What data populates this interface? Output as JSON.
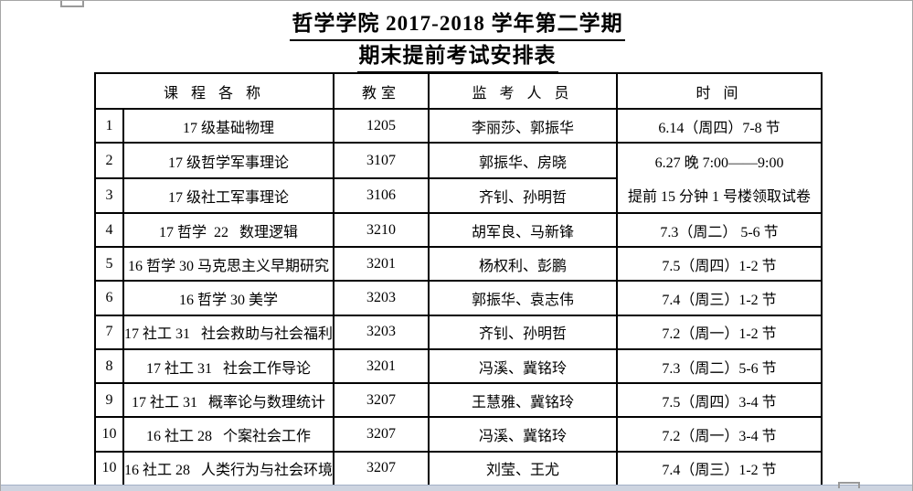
{
  "titles": {
    "line1": "哲学学院 2017-2018 学年第二学期",
    "line2": "期末提前考试安排表"
  },
  "colors": {
    "table_border": "#000000",
    "page_frame": "#a6a6a6",
    "bottom_bar": "#cdd4e0",
    "text": "#000000"
  },
  "table": {
    "headers": {
      "course": "课 程 各 称",
      "room": "教室",
      "invigilators": "监 考 人 员",
      "time": "时 间"
    },
    "merged_time": {
      "line1": "6.27 晚 7:00——9:00",
      "line2": "提前 15 分钟 1 号楼领取试卷"
    },
    "rows": [
      {
        "no": "1",
        "course": "17 级基础物理",
        "room": "1205",
        "invigilators": "李丽莎、郭振华",
        "time": "6.14（周四）7-8 节"
      },
      {
        "no": "2",
        "course": "17 级哲学军事理论",
        "room": "3107",
        "invigilators": "郭振华、房晓",
        "time": ""
      },
      {
        "no": "3",
        "course": "17 级社工军事理论",
        "room": "3106",
        "invigilators": "齐钊、孙明哲",
        "time": ""
      },
      {
        "no": "4",
        "course": "17 哲学  22   数理逻辑",
        "room": "3210",
        "invigilators": "胡军良、马新锋",
        "time": "7.3（周二） 5-6 节"
      },
      {
        "no": "5",
        "course": "16 哲学 30 马克思主义早期研究",
        "room": "3201",
        "invigilators": "杨权利、彭鹏",
        "time": "7.5（周四）1-2 节"
      },
      {
        "no": "6",
        "course": "16 哲学 30 美学",
        "room": "3203",
        "invigilators": "郭振华、袁志伟",
        "time": "7.4（周三）1-2 节"
      },
      {
        "no": "7",
        "course": "17 社工 31   社会救助与社会福利",
        "room": "3203",
        "invigilators": "齐钊、孙明哲",
        "time": "7.2（周一）1-2 节"
      },
      {
        "no": "8",
        "course": "17 社工 31   社会工作导论",
        "room": "3201",
        "invigilators": "冯溪、冀铭玲",
        "time": "7.3（周二）5-6 节"
      },
      {
        "no": "9",
        "course": "17 社工 31   概率论与数理统计",
        "room": "3207",
        "invigilators": "王慧雅、冀铭玲",
        "time": "7.5（周四）3-4 节"
      },
      {
        "no": "10",
        "course": "16 社工 28   个案社会工作",
        "room": "3207",
        "invigilators": "冯溪、冀铭玲",
        "time": "7.2（周一）3-4 节"
      },
      {
        "no": "10",
        "course": "16 社工 28   人类行为与社会环境",
        "room": "3207",
        "invigilators": "刘莹、王尤",
        "time": "7.4（周三）1-2 节"
      }
    ]
  }
}
